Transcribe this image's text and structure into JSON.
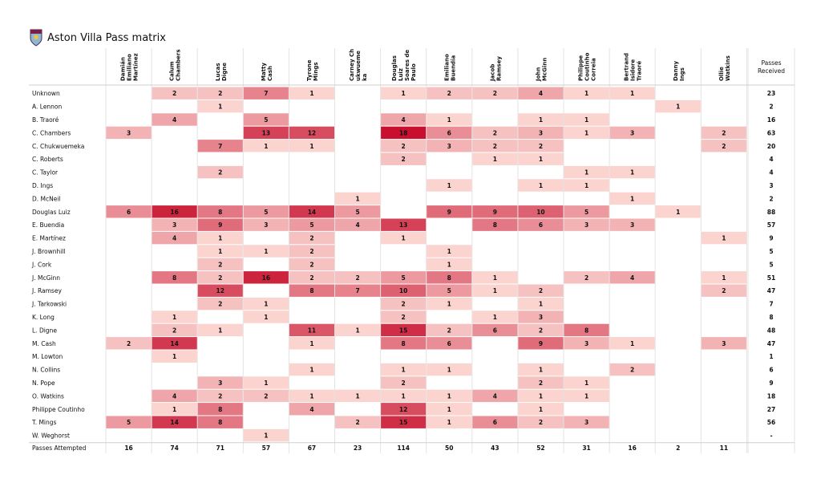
{
  "title": "Aston Villa Pass matrix",
  "colors": {
    "low": "#fbd3cf",
    "high": "#c8102e"
  },
  "chart_data": {
    "type": "heatmap",
    "receivers_label": "Passes Received",
    "attempted_label": "Passes Attempted",
    "columns": [
      [
        "Damián",
        "Emiliano",
        "Martínez"
      ],
      [
        "Calum",
        "Chambers"
      ],
      [
        "Lucas",
        "Digne"
      ],
      [
        "Matty",
        "Cash"
      ],
      [
        "Tyrone",
        "Mings"
      ],
      [
        "Carney Ch",
        "ukwueme",
        "ka"
      ],
      [
        "Douglas",
        "Luiz",
        "Soares de",
        "Paulo"
      ],
      [
        "Emiliano",
        "Buendía"
      ],
      [
        "Jacob",
        "Ramsey"
      ],
      [
        "John",
        "McGinn"
      ],
      [
        "Philippe",
        "Coutinho",
        "Correia"
      ],
      [
        "Bertrand",
        "Isidore",
        "Traoré"
      ],
      [
        "Danny",
        "Ings"
      ],
      [
        "Ollie",
        "Watkins"
      ]
    ],
    "rows": [
      {
        "name": "Unknown",
        "values": [
          null,
          2,
          2,
          7,
          1,
          null,
          1,
          2,
          2,
          4,
          1,
          1,
          null,
          null
        ],
        "received": "23"
      },
      {
        "name": "A. Lennon",
        "values": [
          null,
          null,
          1,
          null,
          null,
          null,
          null,
          null,
          null,
          null,
          null,
          null,
          1,
          null
        ],
        "received": "2"
      },
      {
        "name": "B. Traoré",
        "values": [
          null,
          4,
          null,
          5,
          null,
          null,
          4,
          1,
          null,
          1,
          1,
          null,
          null,
          null
        ],
        "received": "16"
      },
      {
        "name": "C. Chambers",
        "values": [
          3,
          null,
          null,
          13,
          12,
          null,
          18,
          6,
          2,
          3,
          1,
          3,
          null,
          2
        ],
        "received": "63"
      },
      {
        "name": "C. Chukwuemeka",
        "values": [
          null,
          null,
          7,
          1,
          1,
          null,
          2,
          3,
          2,
          2,
          null,
          null,
          null,
          2
        ],
        "received": "20"
      },
      {
        "name": "C. Roberts",
        "values": [
          null,
          null,
          null,
          null,
          null,
          null,
          2,
          null,
          1,
          1,
          null,
          null,
          null,
          null
        ],
        "received": "4"
      },
      {
        "name": "C. Taylor",
        "values": [
          null,
          null,
          2,
          null,
          null,
          null,
          null,
          null,
          null,
          null,
          1,
          1,
          null,
          null
        ],
        "received": "4"
      },
      {
        "name": "D. Ings",
        "values": [
          null,
          null,
          null,
          null,
          null,
          null,
          null,
          1,
          null,
          1,
          1,
          null,
          null,
          null
        ],
        "received": "3"
      },
      {
        "name": "D. McNeil",
        "values": [
          null,
          null,
          null,
          null,
          null,
          1,
          null,
          null,
          null,
          null,
          null,
          1,
          null,
          null
        ],
        "received": "2"
      },
      {
        "name": "Douglas Luiz",
        "values": [
          6,
          16,
          8,
          5,
          14,
          5,
          null,
          9,
          9,
          10,
          5,
          null,
          1,
          null
        ],
        "received": "88"
      },
      {
        "name": "E. Buendia",
        "values": [
          null,
          3,
          9,
          3,
          5,
          4,
          13,
          null,
          8,
          6,
          3,
          3,
          null,
          null
        ],
        "received": "57"
      },
      {
        "name": "E. Martínez",
        "values": [
          null,
          4,
          1,
          null,
          2,
          null,
          1,
          null,
          null,
          null,
          null,
          null,
          null,
          1
        ],
        "received": "9"
      },
      {
        "name": "J. Brownhill",
        "values": [
          null,
          null,
          1,
          1,
          2,
          null,
          null,
          1,
          null,
          null,
          null,
          null,
          null,
          null
        ],
        "received": "5"
      },
      {
        "name": "J. Cork",
        "values": [
          null,
          null,
          2,
          null,
          2,
          null,
          null,
          1,
          null,
          null,
          null,
          null,
          null,
          null
        ],
        "received": "5"
      },
      {
        "name": "J.  McGinn",
        "values": [
          null,
          8,
          2,
          16,
          2,
          2,
          5,
          8,
          1,
          null,
          2,
          4,
          null,
          1
        ],
        "received": "51"
      },
      {
        "name": "J. Ramsey",
        "values": [
          null,
          null,
          12,
          null,
          8,
          7,
          10,
          5,
          1,
          2,
          null,
          null,
          null,
          2
        ],
        "received": "47"
      },
      {
        "name": "J. Tarkowski",
        "values": [
          null,
          null,
          2,
          1,
          null,
          null,
          2,
          1,
          null,
          1,
          null,
          null,
          null,
          null
        ],
        "received": "7"
      },
      {
        "name": "K. Long",
        "values": [
          null,
          1,
          null,
          1,
          null,
          null,
          2,
          null,
          1,
          3,
          null,
          null,
          null,
          null
        ],
        "received": "8"
      },
      {
        "name": "L. Digne",
        "values": [
          null,
          2,
          1,
          null,
          11,
          1,
          15,
          2,
          6,
          2,
          8,
          null,
          null,
          null
        ],
        "received": "48"
      },
      {
        "name": "M. Cash",
        "values": [
          2,
          14,
          null,
          null,
          1,
          null,
          8,
          6,
          null,
          9,
          3,
          1,
          null,
          3
        ],
        "received": "47"
      },
      {
        "name": "M. Lowton",
        "values": [
          null,
          1,
          null,
          null,
          null,
          null,
          null,
          null,
          null,
          null,
          null,
          null,
          null,
          null
        ],
        "received": "1"
      },
      {
        "name": "N. Collins",
        "values": [
          null,
          null,
          null,
          null,
          1,
          null,
          1,
          1,
          null,
          1,
          null,
          2,
          null,
          null
        ],
        "received": "6"
      },
      {
        "name": "N. Pope",
        "values": [
          null,
          null,
          3,
          1,
          null,
          null,
          2,
          null,
          null,
          2,
          1,
          null,
          null,
          null
        ],
        "received": "9"
      },
      {
        "name": "O. Watkins",
        "values": [
          null,
          4,
          2,
          2,
          1,
          1,
          1,
          1,
          4,
          1,
          1,
          null,
          null,
          null
        ],
        "received": "18"
      },
      {
        "name": "Philippe Coutinho",
        "values": [
          null,
          1,
          8,
          null,
          4,
          null,
          12,
          1,
          null,
          1,
          null,
          null,
          null,
          null
        ],
        "received": "27"
      },
      {
        "name": "T. Mings",
        "values": [
          5,
          14,
          8,
          null,
          null,
          2,
          15,
          1,
          6,
          2,
          3,
          null,
          null,
          null
        ],
        "received": "56"
      },
      {
        "name": "W. Weghorst",
        "values": [
          null,
          null,
          null,
          1,
          null,
          null,
          null,
          null,
          null,
          null,
          null,
          null,
          null,
          null
        ],
        "received": "-"
      }
    ],
    "attempted": [
      "16",
      "74",
      "71",
      "57",
      "67",
      "23",
      "114",
      "50",
      "43",
      "52",
      "31",
      "16",
      "2",
      "11"
    ]
  }
}
